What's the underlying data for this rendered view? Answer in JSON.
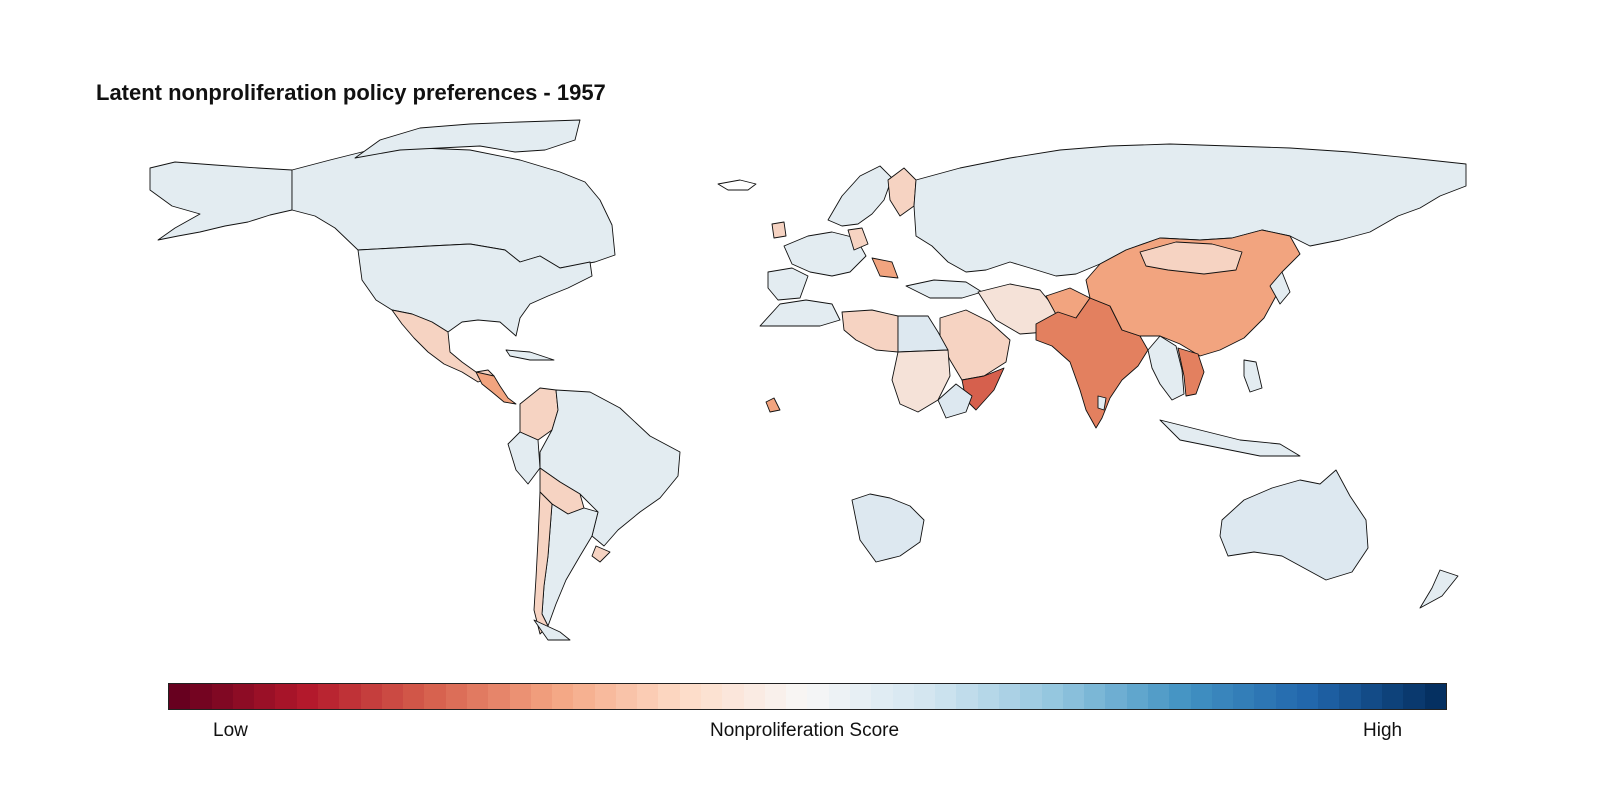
{
  "title": "Latent nonproliferation policy preferences - 1957",
  "legend": {
    "title": "Nonproliferation Score",
    "low_label": "Low",
    "high_label": "High",
    "palette_stops": [
      "#67001f",
      "#b2182b",
      "#d6604d",
      "#f4a582",
      "#fddbc7",
      "#f7f7f7",
      "#d1e5f0",
      "#92c5de",
      "#4393c3",
      "#2166ac",
      "#053061"
    ]
  },
  "colors": {
    "neutral_high": "#e3ecf1",
    "light_blue": "#dde8f0",
    "pale_peach": "#f5e2d8",
    "light_salmon": "#f6d3c2",
    "salmon": "#f2a47f",
    "orange_red": "#e3805f",
    "red": "#d6604d",
    "border": "#111111"
  },
  "chart_data": {
    "type": "choropleth",
    "title": "Latent nonproliferation policy preferences - 1957",
    "legend_title": "Nonproliferation Score",
    "scale": {
      "low": "Low",
      "high": "High"
    },
    "categories": [
      {
        "name": "India",
        "shade": "orange_red"
      },
      {
        "name": "China",
        "shade": "salmon"
      },
      {
        "name": "Vietnam",
        "shade": "orange_red"
      },
      {
        "name": "Afghanistan",
        "shade": "salmon"
      },
      {
        "name": "Mongolia",
        "shade": "light_salmon"
      },
      {
        "name": "Saudi Arabia",
        "shade": "light_salmon"
      },
      {
        "name": "Iran",
        "shade": "pale_peach"
      },
      {
        "name": "Libya",
        "shade": "light_salmon"
      },
      {
        "name": "Sudan",
        "shade": "pale_peach"
      },
      {
        "name": "Yemen",
        "shade": "red"
      },
      {
        "name": "Finland",
        "shade": "light_salmon"
      },
      {
        "name": "Mexico",
        "shade": "light_salmon"
      },
      {
        "name": "Colombia",
        "shade": "light_salmon"
      },
      {
        "name": "Bolivia",
        "shade": "light_salmon"
      },
      {
        "name": "United States",
        "shade": "neutral_high"
      },
      {
        "name": "Canada",
        "shade": "neutral_high"
      },
      {
        "name": "Soviet Union",
        "shade": "neutral_high"
      },
      {
        "name": "Brazil",
        "shade": "neutral_high"
      },
      {
        "name": "Australia",
        "shade": "light_blue"
      },
      {
        "name": "South Africa",
        "shade": "light_blue"
      },
      {
        "name": "Egypt",
        "shade": "light_blue"
      }
    ]
  }
}
